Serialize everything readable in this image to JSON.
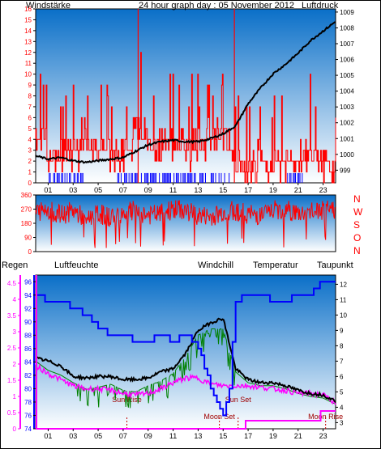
{
  "colors": {
    "wind": "#ff0000",
    "wind_dir": "#ff0000",
    "pressure": "#000000",
    "gust_bars": "#0000ff",
    "regen": "#ff00ff",
    "luftfeuchte": "#0000ff",
    "windchill": "#008000",
    "temperatur": "#000000",
    "taupunkt": "#ff00ff",
    "panel_top": "#0a6fc8",
    "panel_bottom": "#ffffff"
  },
  "chart_data": [
    {
      "type": "line",
      "title": "24 hour graph day : 05 November 2012",
      "left_label": "Windstärke",
      "right_label": "Luftdruck",
      "x_ticks": [
        "01",
        "03",
        "05",
        "07",
        "09",
        "11",
        "13",
        "15",
        "17",
        "19",
        "21",
        "23"
      ],
      "y_left_ticks": [
        "0",
        "1",
        "2",
        "3",
        "4",
        "5",
        "6",
        "7",
        "8",
        "9",
        "10",
        "11",
        "12",
        "13",
        "14",
        "15",
        "16"
      ],
      "y_left_range": [
        0,
        16
      ],
      "y_right_ticks": [
        "999",
        "1000",
        "1001",
        "1002",
        "1003",
        "1004",
        "1005",
        "1006",
        "1007",
        "1008",
        "1009"
      ],
      "y_right_range": [
        998.2,
        1009.2
      ],
      "series": [
        {
          "role": "pressure",
          "x": [
            0,
            1,
            2,
            3,
            4,
            5,
            6,
            7,
            8,
            9,
            10,
            11,
            12,
            13,
            14,
            15,
            16,
            17,
            18,
            19,
            20,
            21,
            22,
            23,
            24
          ],
          "values": [
            999.9,
            999.7,
            999.8,
            999.6,
            999.5,
            999.6,
            999.7,
            999.8,
            1000.2,
            1000.6,
            1000.8,
            1000.9,
            1000.8,
            1000.8,
            1001.0,
            1001.3,
            1001.8,
            1003.2,
            1004.2,
            1005.1,
            1005.7,
            1006.4,
            1007.2,
            1007.8,
            1008.4
          ]
        },
        {
          "role": "wind",
          "x": [
            0,
            1,
            2,
            3,
            4,
            5,
            6,
            7,
            8,
            9,
            10,
            11,
            12,
            13,
            14,
            15,
            16,
            17,
            18,
            19,
            20,
            21,
            22,
            23,
            24
          ],
          "values": [
            4,
            3,
            2,
            3,
            4,
            3,
            3,
            2,
            5,
            4,
            3,
            4,
            3,
            3,
            4,
            5,
            2,
            1,
            2,
            1,
            2,
            2,
            3,
            2,
            1
          ]
        },
        {
          "role": "gust-peak",
          "x": [
            8.2,
            15.9
          ],
          "values": [
            16,
            16
          ]
        }
      ]
    },
    {
      "type": "line",
      "right_letters": [
        "N",
        "W",
        "S",
        "O",
        "N"
      ],
      "y_ticks": [
        "0",
        "90",
        "180",
        "270",
        "360"
      ],
      "y_range": [
        0,
        360
      ],
      "series": [
        {
          "role": "wind-direction",
          "x": [
            0,
            1,
            2,
            3,
            4,
            5,
            6,
            7,
            8,
            9,
            10,
            11,
            12,
            13,
            14,
            15,
            16,
            17,
            18,
            19,
            20,
            21,
            22,
            23,
            24
          ],
          "values": [
            250,
            270,
            230,
            260,
            210,
            240,
            220,
            250,
            260,
            230,
            240,
            270,
            260,
            230,
            220,
            250,
            260,
            240,
            230,
            260,
            270,
            240,
            250,
            260,
            270
          ]
        }
      ]
    },
    {
      "type": "line",
      "labels": {
        "regen": "Regen",
        "luftfeuchte": "Luftfeuchte",
        "windchill": "Windchill",
        "temperatur": "Temperatur",
        "taupunkt": "Taupunkt"
      },
      "x_ticks": [
        "01",
        "03",
        "05",
        "07",
        "09",
        "11",
        "13",
        "15",
        "17",
        "19",
        "21",
        "23"
      ],
      "y_rain_ticks": [
        "0",
        "0.5",
        "1",
        "1.5",
        "2",
        "2.5",
        "3",
        "3.5",
        "4",
        "4.5"
      ],
      "y_rain_range": [
        0,
        4.75
      ],
      "y_humidity_ticks": [
        "74",
        "76",
        "78",
        "80",
        "82",
        "84",
        "86",
        "88",
        "90",
        "92",
        "94",
        "96"
      ],
      "y_humidity_range": [
        74,
        97
      ],
      "y_temp_ticks": [
        "3",
        "4",
        "5",
        "6",
        "7",
        "8",
        "9",
        "10",
        "11",
        "12"
      ],
      "y_temp_range": [
        2.6,
        12.6
      ],
      "events": [
        {
          "label": "Sun Rise",
          "x": 7.3
        },
        {
          "label": "Moon Set",
          "x": 14.7
        },
        {
          "label": "Sun Set",
          "x": 16.2
        },
        {
          "label": "Moon Rise",
          "x": 23.2
        }
      ],
      "series": [
        {
          "role": "humidity",
          "x": [
            0,
            1,
            2,
            3,
            4,
            5,
            6,
            7,
            8,
            9,
            10,
            11,
            12,
            13,
            14,
            15,
            15.5,
            16,
            17,
            18,
            19,
            20,
            21,
            22,
            23,
            24
          ],
          "values": [
            94,
            93,
            93,
            92,
            91,
            89,
            88,
            88,
            87,
            87,
            88,
            87,
            88,
            86,
            80,
            76,
            80,
            93,
            94,
            94,
            93,
            93,
            94,
            94,
            96,
            96
          ]
        },
        {
          "role": "temperature",
          "x": [
            0,
            1,
            2,
            3,
            4,
            5,
            6,
            7,
            8,
            9,
            10,
            11,
            12,
            13,
            14,
            15,
            16,
            17,
            18,
            19,
            20,
            21,
            22,
            23,
            24
          ],
          "values": [
            7.2,
            7,
            6.7,
            6,
            5.9,
            6,
            6,
            5.8,
            5.8,
            5.9,
            6.3,
            6.5,
            7.5,
            9,
            9.5,
            9.8,
            6.5,
            5.8,
            5.6,
            5.6,
            5.4,
            5.1,
            4.9,
            4.8,
            4.4
          ]
        },
        {
          "role": "windchill",
          "x": [
            0,
            1,
            2,
            3,
            4,
            5,
            6,
            7,
            8,
            9,
            10,
            11,
            12,
            13,
            14,
            15,
            16,
            17,
            18,
            19,
            20,
            21,
            22,
            23,
            24
          ],
          "values": [
            7,
            6.4,
            6.1,
            5.6,
            5.2,
            5.3,
            5.5,
            5.1,
            5,
            5.4,
            5.7,
            6.2,
            7.3,
            8.7,
            9.1,
            9.1,
            6.3,
            5.6,
            5.4,
            5.4,
            5.2,
            4.9,
            4.7,
            4.6,
            4.2
          ]
        },
        {
          "role": "dewpoint",
          "x": [
            0,
            1,
            2,
            3,
            4,
            5,
            6,
            7,
            8,
            9,
            10,
            11,
            12,
            13,
            14,
            15,
            16,
            17,
            18,
            19,
            20,
            21,
            22,
            23,
            24
          ],
          "values": [
            6.7,
            6.2,
            5.8,
            5.4,
            5.2,
            5.2,
            5.1,
            4.9,
            4.8,
            4.9,
            5.2,
            5.6,
            5.9,
            5.9,
            5.5,
            5.4,
            5.4,
            5.4,
            5.3,
            5.2,
            5.1,
            4.9,
            4.9,
            4.8,
            4.3
          ]
        },
        {
          "role": "rain",
          "x": [
            0,
            16.8,
            16.8,
            22.8,
            22.8,
            24
          ],
          "values": [
            0,
            0,
            0.25,
            0.25,
            0.55,
            0.55
          ]
        }
      ]
    }
  ]
}
